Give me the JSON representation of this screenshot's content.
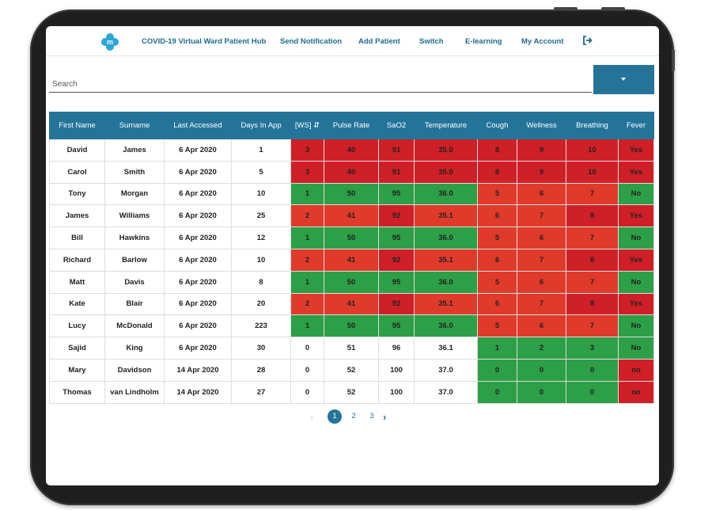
{
  "nav": {
    "items": [
      {
        "label": "COVID-19 Virtual Ward Patient Hub"
      },
      {
        "label": "Send Notification"
      },
      {
        "label": "Add Patient"
      },
      {
        "label": "Switch"
      },
      {
        "label": "E-learning"
      },
      {
        "label": "My Account"
      }
    ],
    "logo_letter": "m"
  },
  "search": {
    "placeholder": "Search"
  },
  "table": {
    "headers": [
      "First Name",
      "Surname",
      "Last Accessed",
      "Days In App",
      "[WS] ⇵",
      "Pulse Rate",
      "SaO2",
      "Temperature",
      "Cough",
      "Wellness",
      "Breathing",
      "Fever"
    ],
    "rows": [
      [
        "David",
        "James",
        "6 Apr 2020",
        "1",
        "3",
        "40",
        "91",
        "35.0",
        "8",
        "9",
        "10",
        "Yes"
      ],
      [
        "Carol",
        "Smith",
        "6 Apr 2020",
        "5",
        "3",
        "40",
        "91",
        "35.0",
        "8",
        "9",
        "10",
        "Yes"
      ],
      [
        "Tony",
        "Morgan",
        "6 Apr 2020",
        "10",
        "1",
        "50",
        "95",
        "36.0",
        "5",
        "6",
        "7",
        "No"
      ],
      [
        "James",
        "Williams",
        "6 Apr 2020",
        "25",
        "2",
        "41",
        "92",
        "35.1",
        "6",
        "7",
        "8",
        "Yes"
      ],
      [
        "Bill",
        "Hawkins",
        "6 Apr 2020",
        "12",
        "1",
        "50",
        "95",
        "36.0",
        "5",
        "6",
        "7",
        "No"
      ],
      [
        "Richard",
        "Barlow",
        "6 Apr 2020",
        "10",
        "2",
        "41",
        "92",
        "35.1",
        "6",
        "7",
        "8",
        "Yes"
      ],
      [
        "Matt",
        "Davis",
        "6 Apr 2020",
        "8",
        "1",
        "50",
        "95",
        "36.0",
        "5",
        "6",
        "7",
        "No"
      ],
      [
        "Kate",
        "Blair",
        "6 Apr 2020",
        "20",
        "2",
        "41",
        "92",
        "35.1",
        "6",
        "7",
        "8",
        "Yes"
      ],
      [
        "Lucy",
        "McDonald",
        "6 Apr 2020",
        "223",
        "1",
        "50",
        "95",
        "36.0",
        "5",
        "6",
        "7",
        "No"
      ],
      [
        "Sajid",
        "King",
        "6 Apr 2020",
        "30",
        "0",
        "51",
        "96",
        "36.1",
        "1",
        "2",
        "3",
        "No"
      ],
      [
        "Mary",
        "Davidson",
        "14 Apr 2020",
        "28",
        "0",
        "52",
        "100",
        "37.0",
        "0",
        "0",
        "0",
        "no"
      ],
      [
        "Thomas",
        "van Lindholm",
        "14 Apr 2020",
        "27",
        "0",
        "52",
        "100",
        "37.0",
        "0",
        "0",
        "0",
        "no"
      ]
    ],
    "status": [
      [
        "",
        "",
        "",
        "",
        "red",
        "red",
        "red",
        "red",
        "red",
        "red",
        "red",
        "red"
      ],
      [
        "",
        "",
        "",
        "",
        "red",
        "red",
        "red",
        "red",
        "red",
        "red",
        "red",
        "red"
      ],
      [
        "",
        "",
        "",
        "",
        "green",
        "green",
        "green",
        "green",
        "orange",
        "orange",
        "orange",
        "green"
      ],
      [
        "",
        "",
        "",
        "",
        "orange",
        "orange",
        "red",
        "orange",
        "orange",
        "orange",
        "red",
        "red"
      ],
      [
        "",
        "",
        "",
        "",
        "green",
        "green",
        "green",
        "green",
        "orange",
        "orange",
        "orange",
        "green"
      ],
      [
        "",
        "",
        "",
        "",
        "orange",
        "orange",
        "red",
        "orange",
        "orange",
        "orange",
        "red",
        "red"
      ],
      [
        "",
        "",
        "",
        "",
        "green",
        "green",
        "green",
        "green",
        "orange",
        "orange",
        "orange",
        "green"
      ],
      [
        "",
        "",
        "",
        "",
        "orange",
        "orange",
        "red",
        "orange",
        "orange",
        "orange",
        "red",
        "red"
      ],
      [
        "",
        "",
        "",
        "",
        "green",
        "green",
        "green",
        "green",
        "orange",
        "orange",
        "orange",
        "green"
      ],
      [
        "",
        "",
        "",
        "",
        "plain",
        "plain",
        "plain",
        "plain",
        "green",
        "green",
        "green",
        "green"
      ],
      [
        "",
        "",
        "",
        "",
        "plain",
        "plain",
        "plain",
        "plain",
        "green",
        "green",
        "green",
        "red"
      ],
      [
        "",
        "",
        "",
        "",
        "plain",
        "plain",
        "plain",
        "plain",
        "green",
        "green",
        "green",
        "red"
      ]
    ]
  },
  "pagination": {
    "pages": [
      "1",
      "2",
      "3"
    ],
    "current": "1"
  },
  "colors": {
    "brand": "#24749a",
    "red": "#cf2027",
    "green": "#2d9f46",
    "orange": "#e03a2b"
  },
  "icons": {
    "logo": "medical-cross-logo-icon",
    "logout": "logout-icon",
    "dropdown": "caret-down-icon",
    "prev": "chevron-left-icon",
    "next": "chevron-right-icon"
  }
}
